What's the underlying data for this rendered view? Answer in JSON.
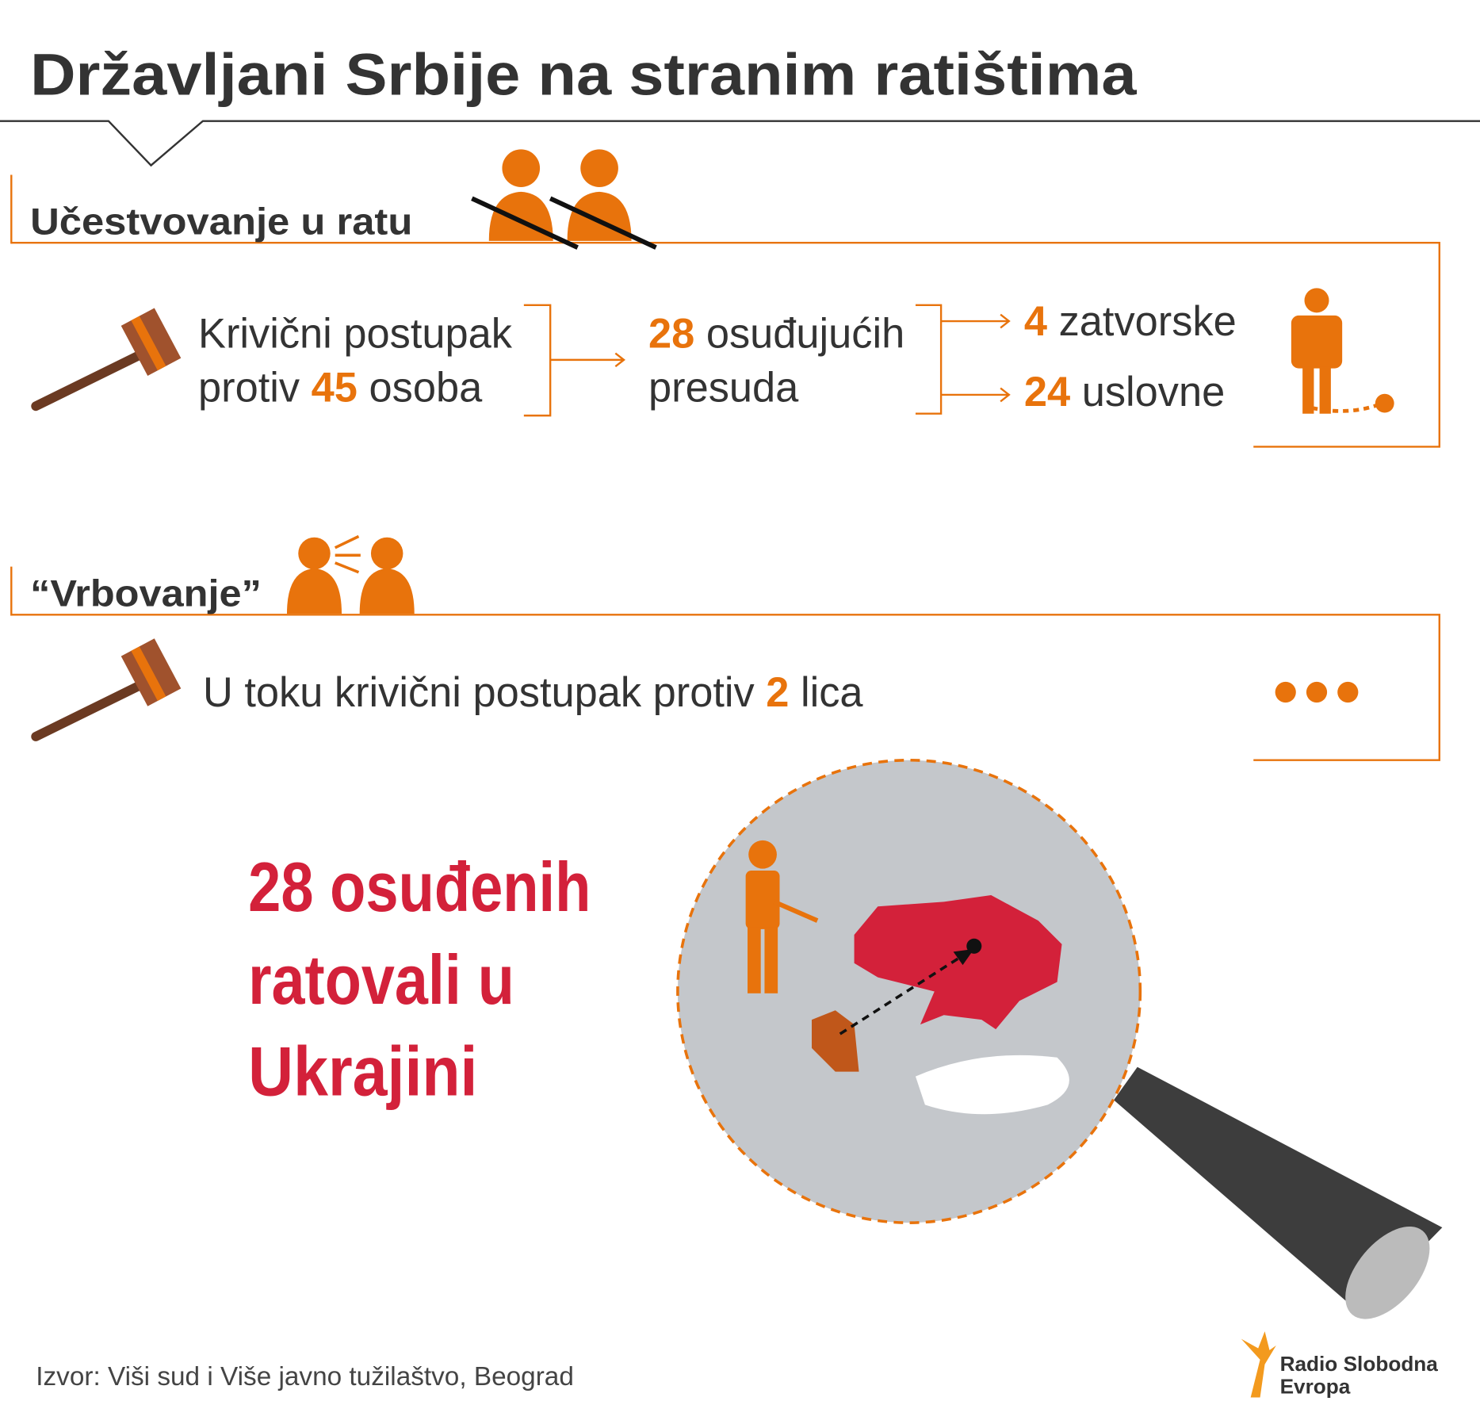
{
  "header": {
    "title": "Državljani Srbije na stranim ratištima"
  },
  "participation": {
    "heading": "Učestvovanje u ratu",
    "proceedings": {
      "line1": "Krivični postupak",
      "prefix": "protiv",
      "number": 45,
      "suffix": "osoba"
    },
    "verdicts": {
      "number": 28,
      "text": "osuđujućih",
      "line2": "presuda"
    },
    "prison": {
      "number": 4,
      "text": "zatvorske"
    },
    "suspended": {
      "number": 24,
      "text": "uslovne"
    }
  },
  "recruitment": {
    "heading": "“Vrbovanje”",
    "proceedings": {
      "text": "U toku krivični postupak protiv",
      "number": 2,
      "suffix": "lica"
    }
  },
  "highlight": {
    "lines": [
      "28 osuđenih",
      "ratovali u",
      "Ukrajini"
    ]
  },
  "source": "Izvor: Viši sud i Više javno tužilaštvo, Beograd",
  "logo": {
    "line1": "Radio Slobodna",
    "line2": "Evropa"
  }
}
